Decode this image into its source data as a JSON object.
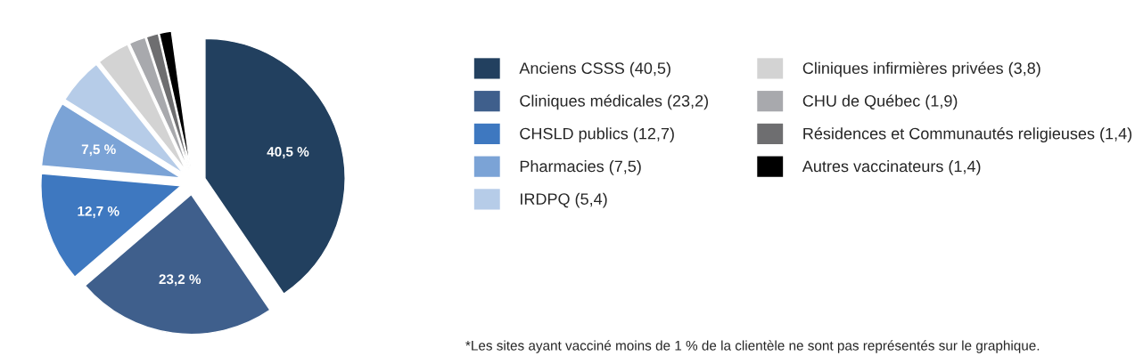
{
  "chart_data": {
    "type": "pie",
    "categories": [
      "Anciens CSSS (40,5)",
      "Cliniques médicales (23,2)",
      "CHSLD publics (12,7)",
      "Pharmacies (7,5)",
      "IRDPQ (5,4)",
      "Cliniques infirmières privées (3,8)",
      "CHU de Québec (1,9)",
      "Résidences et Communautés religieuses (1,4)",
      "Autres vaccinateurs (1,4)"
    ],
    "values": [
      40.5,
      23.2,
      12.7,
      7.5,
      5.4,
      3.8,
      1.9,
      1.4,
      1.4
    ],
    "colors": [
      "#22405f",
      "#3f5f8c",
      "#3e78c0",
      "#7ba3d6",
      "#b6cce8",
      "#d3d3d3",
      "#a8a9ad",
      "#6e6e70",
      "#000000"
    ],
    "value_labels": [
      "40,5 %",
      "23,2 %",
      "12,7 %",
      "7,5 %",
      null,
      null,
      null,
      null,
      null
    ],
    "legend": "right",
    "annotations": [
      "*Les sites ayant vacciné moins de 1 % de la clientèle ne sont pas représentés sur le graphique."
    ]
  }
}
